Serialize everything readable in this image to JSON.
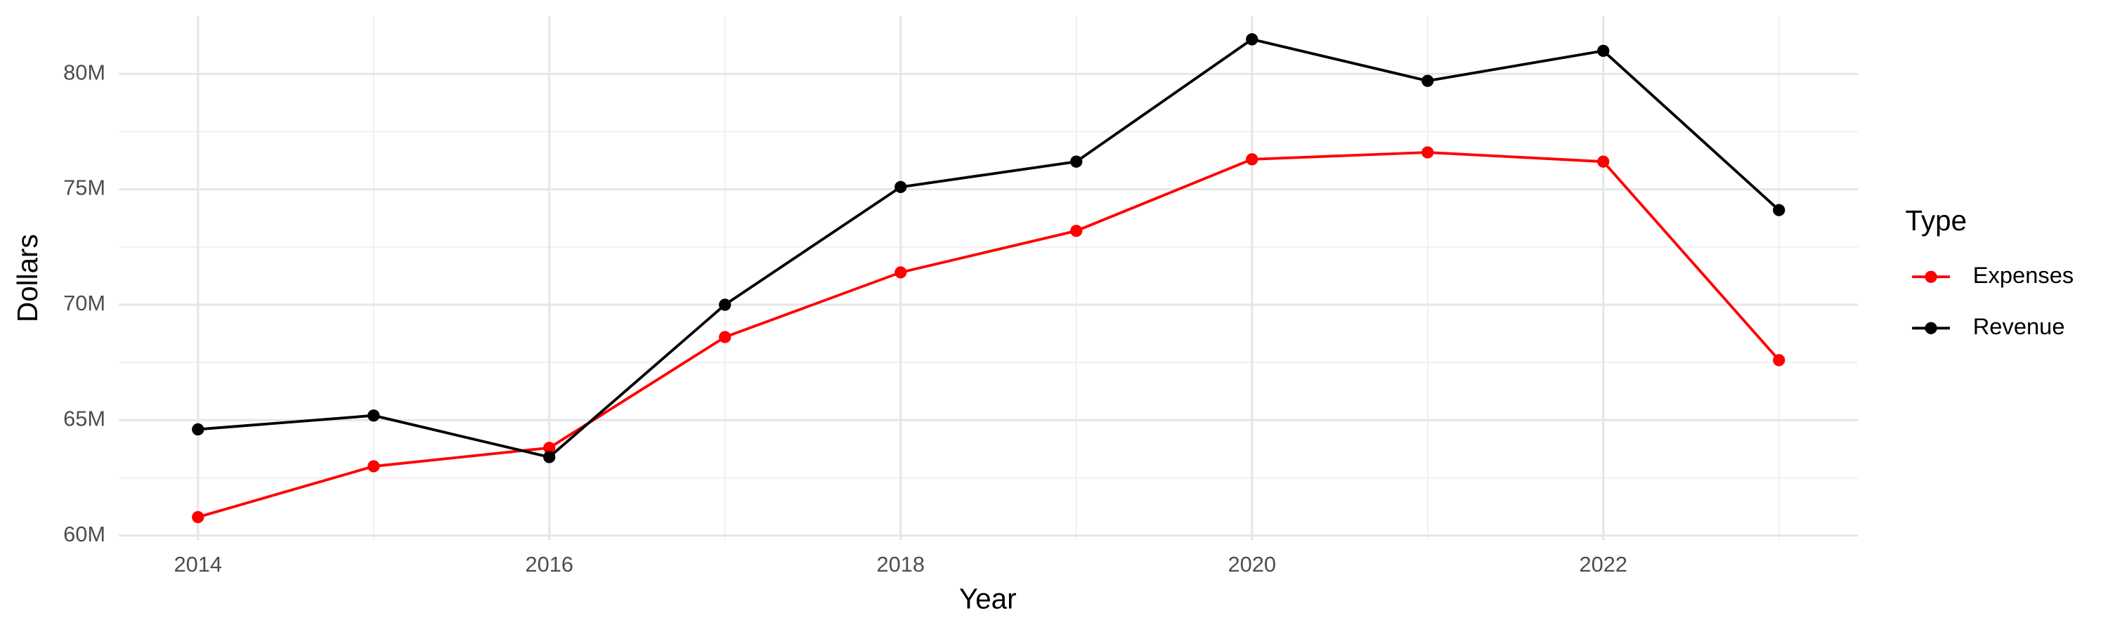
{
  "chart_data": {
    "type": "line",
    "x_label": "Year",
    "y_label": "Dollars",
    "legend_title": "Type",
    "legend": "right",
    "grid": true,
    "x": [
      2014,
      2015,
      2016,
      2017,
      2018,
      2019,
      2020,
      2021,
      2022,
      2023
    ],
    "series": [
      {
        "name": "Expenses",
        "color": "#ff0000",
        "values": [
          60800000,
          63000000,
          63800000,
          68600000,
          71400000,
          73200000,
          76300000,
          76600000,
          76200000,
          67600000
        ]
      },
      {
        "name": "Revenue",
        "color": "#000000",
        "values": [
          64600000,
          65200000,
          63400000,
          70000000,
          75100000,
          76200000,
          81500000,
          79700000,
          81000000,
          74100000
        ]
      }
    ],
    "xlim": [
      2013.55,
      2023.45
    ],
    "xticks": [
      2014,
      2016,
      2018,
      2020,
      2022
    ],
    "xminorticks": [
      2015,
      2017,
      2019,
      2021,
      2023
    ],
    "ylim": [
      59800000,
      82500000
    ],
    "yticks": [
      {
        "value": 60000000,
        "label": "60M"
      },
      {
        "value": 65000000,
        "label": "65M"
      },
      {
        "value": 70000000,
        "label": "70M"
      },
      {
        "value": 75000000,
        "label": "75M"
      },
      {
        "value": 80000000,
        "label": "80M"
      }
    ],
    "yminorticks": [
      62500000,
      67500000,
      72500000,
      77500000
    ]
  }
}
